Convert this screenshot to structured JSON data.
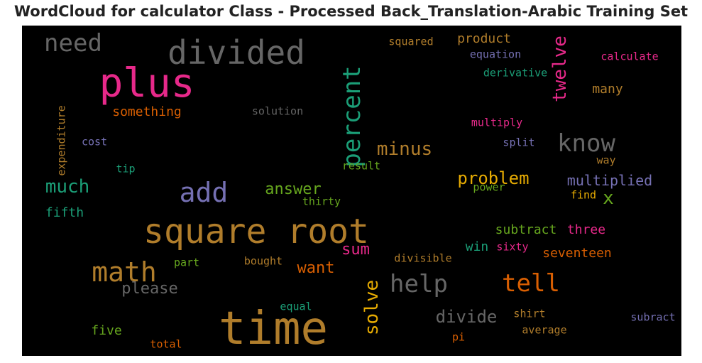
{
  "title": "WordCloud for calculator Class - Processed Back_Translation-Arabic Training Set",
  "chart_data": {
    "type": "wordcloud",
    "title": "WordCloud for calculator Class - Processed Back_Translation-Arabic Training Set",
    "background": "#000000",
    "words": [
      {
        "text": "time",
        "color": "#b07d2b"
      },
      {
        "text": "square root",
        "color": "#b07d2b"
      },
      {
        "text": "plus",
        "color": "#e7298a"
      },
      {
        "text": "divided",
        "color": "#666666"
      },
      {
        "text": "add",
        "color": "#7570b3"
      },
      {
        "text": "math",
        "color": "#b07d2b"
      },
      {
        "text": "help",
        "color": "#666666"
      },
      {
        "text": "know",
        "color": "#666666"
      },
      {
        "text": "percent",
        "color": "#1b9e77"
      },
      {
        "text": "tell",
        "color": "#d95f02"
      },
      {
        "text": "need",
        "color": "#666666"
      },
      {
        "text": "solve",
        "color": "#e6ab02"
      },
      {
        "text": "minus",
        "color": "#b07d2b"
      },
      {
        "text": "twelve",
        "color": "#e7298a"
      },
      {
        "text": "much",
        "color": "#1b9e77"
      },
      {
        "text": "divide",
        "color": "#666666"
      },
      {
        "text": "problem",
        "color": "#e6ab02"
      },
      {
        "text": "answer",
        "color": "#66a61e"
      },
      {
        "text": "please",
        "color": "#666666"
      },
      {
        "text": "want",
        "color": "#d95f02"
      },
      {
        "text": "sum",
        "color": "#e7298a"
      },
      {
        "text": "x",
        "color": "#66a61e"
      },
      {
        "text": "multiplied",
        "color": "#7570b3"
      },
      {
        "text": "something",
        "color": "#d95f02"
      },
      {
        "text": "product",
        "color": "#b07d2b"
      },
      {
        "text": "fifth",
        "color": "#1b9e77"
      },
      {
        "text": "subtract",
        "color": "#66a61e"
      },
      {
        "text": "three",
        "color": "#e7298a"
      },
      {
        "text": "seventeen",
        "color": "#d95f02"
      },
      {
        "text": "many",
        "color": "#b07d2b"
      },
      {
        "text": "five",
        "color": "#66a61e"
      },
      {
        "text": "win",
        "color": "#1b9e77"
      },
      {
        "text": "calculate",
        "color": "#e7298a"
      },
      {
        "text": "derivative",
        "color": "#1b9e77"
      },
      {
        "text": "equation",
        "color": "#7570b3"
      },
      {
        "text": "solution",
        "color": "#666666"
      },
      {
        "text": "split",
        "color": "#7570b3"
      },
      {
        "text": "squared",
        "color": "#b07d2b"
      },
      {
        "text": "multiply",
        "color": "#e7298a"
      },
      {
        "text": "divisible",
        "color": "#b07d2b"
      },
      {
        "text": "expenditure",
        "color": "#b07d2b"
      },
      {
        "text": "cost",
        "color": "#7570b3"
      },
      {
        "text": "tip",
        "color": "#1b9e77"
      },
      {
        "text": "result",
        "color": "#66a61e"
      },
      {
        "text": "way",
        "color": "#b07d2b"
      },
      {
        "text": "power",
        "color": "#66a61e"
      },
      {
        "text": "find",
        "color": "#e6ab02"
      },
      {
        "text": "thirty",
        "color": "#66a61e"
      },
      {
        "text": "sixty",
        "color": "#e7298a"
      },
      {
        "text": "part",
        "color": "#66a61e"
      },
      {
        "text": "bought",
        "color": "#b07d2b"
      },
      {
        "text": "equal",
        "color": "#1b9e77"
      },
      {
        "text": "shirt",
        "color": "#b07d2b"
      },
      {
        "text": "average",
        "color": "#b07d2b"
      },
      {
        "text": "subract",
        "color": "#7570b3"
      },
      {
        "text": "total",
        "color": "#d95f02"
      },
      {
        "text": "pi",
        "color": "#d95f02"
      }
    ]
  }
}
